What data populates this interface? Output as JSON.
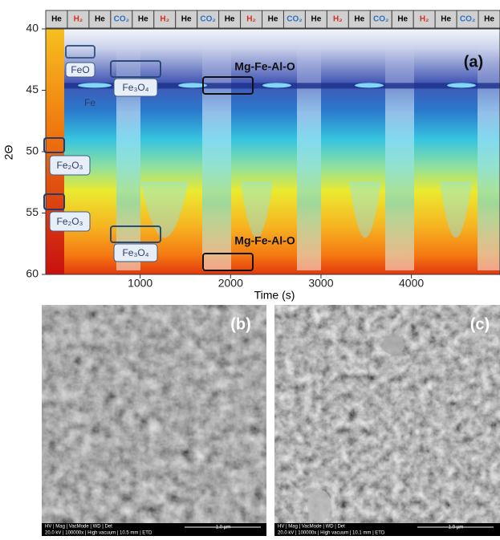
{
  "panel_a": {
    "label": "(a)",
    "y_label": "2Θ",
    "x_label": "Time (s)",
    "xlim": [
      0,
      4980
    ],
    "xticks": [
      1000,
      2000,
      3000,
      4000
    ],
    "ylim": [
      40,
      60
    ],
    "yticks": [
      40,
      45,
      50,
      55,
      60
    ],
    "gas_sequence": [
      {
        "gas": "He",
        "color": "#000000"
      },
      {
        "gas": "H₂",
        "color": "#d03020"
      },
      {
        "gas": "He",
        "color": "#000000"
      },
      {
        "gas": "CO₂",
        "color": "#3070c0"
      },
      {
        "gas": "He",
        "color": "#000000"
      },
      {
        "gas": "H₂",
        "color": "#d03020"
      },
      {
        "gas": "He",
        "color": "#000000"
      },
      {
        "gas": "CO₂",
        "color": "#3070c0"
      },
      {
        "gas": "He",
        "color": "#000000"
      },
      {
        "gas": "H₂",
        "color": "#d03020"
      },
      {
        "gas": "He",
        "color": "#000000"
      },
      {
        "gas": "CO₂",
        "color": "#3070c0"
      },
      {
        "gas": "He",
        "color": "#000000"
      },
      {
        "gas": "H₂",
        "color": "#d03020"
      },
      {
        "gas": "He",
        "color": "#000000"
      },
      {
        "gas": "CO₂",
        "color": "#3070c0"
      },
      {
        "gas": "He",
        "color": "#000000"
      },
      {
        "gas": "H₂",
        "color": "#d03020"
      },
      {
        "gas": "He",
        "color": "#000000"
      },
      {
        "gas": "CO₂",
        "color": "#3070c0"
      },
      {
        "gas": "He",
        "color": "#000000"
      }
    ],
    "phase_labels": {
      "feo": "FeO",
      "fe": "Fe",
      "fe3o4_top": "Fe₃O₄",
      "fe2o3_upper": "Fe₂O₃",
      "fe2o3_lower": "Fe₂O₃",
      "fe3o4_bottom": "Fe₃O₄",
      "mgfealo_top": "Mg-Fe-Al-O",
      "mgfealo_bottom": "Mg-Fe-Al-O"
    }
  },
  "panel_b": {
    "label": "(b)",
    "info_headers": "HV | Mag | VacMode | WD | Det",
    "info_values": "20.0 kV | 100000x | High vacuum | 10.5 mm | ETD",
    "scale": "1.0 µm"
  },
  "panel_c": {
    "label": "(c)",
    "info_headers": "HV | Mag | VacMode | WD | Det",
    "info_values": "20.0 kV | 100000x | High vacuum | 10.1 mm | ETD",
    "scale": "1.0 µm"
  }
}
